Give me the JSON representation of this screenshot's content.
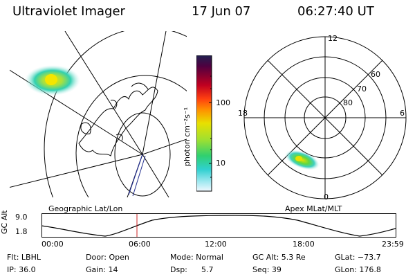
{
  "header": {
    "instrument": "Ultraviolet Imager",
    "date": "17 Jun 07",
    "time": "06:27:40 UT"
  },
  "geo_panel": {
    "label": "Geographic Lat/Lon"
  },
  "polar_panel": {
    "label": "Apex MLat/MLT",
    "mlt_labels": {
      "top": "12",
      "left": "18",
      "right": "6",
      "bottom": "0"
    },
    "lat_labels": [
      "60",
      "70",
      "80"
    ]
  },
  "colorbar": {
    "unit": "photon cm⁻²s⁻¹",
    "ticks": [
      "100",
      "10"
    ],
    "scale": "log"
  },
  "altitude_plot": {
    "ylabel": "GC Alt",
    "ymax_label": "9.0",
    "ymin_label": "1.8",
    "time_ticks": [
      "00:00",
      "06:00",
      "12:00",
      "18:00",
      "23:59"
    ],
    "current_time_marker": "06:27:40"
  },
  "info": {
    "row1": {
      "filter": "Flt: LBHL",
      "door": "Door: Open",
      "mode": "Mode: Normal",
      "gc_alt": "GC Alt: 5.3 Re",
      "glat": "GLat: −73.7"
    },
    "row2": {
      "ip": "IP: 36.0",
      "gain": "Gain: 14",
      "dsp_label": "Dsp:",
      "dsp_value": "5.7",
      "seq": "Seq: 39",
      "glon": "GLon: 176.8"
    }
  },
  "colors": {
    "background": "#ffffff",
    "foreground": "#000000",
    "marker": "#cc2222",
    "track": "#1e2a8c"
  }
}
